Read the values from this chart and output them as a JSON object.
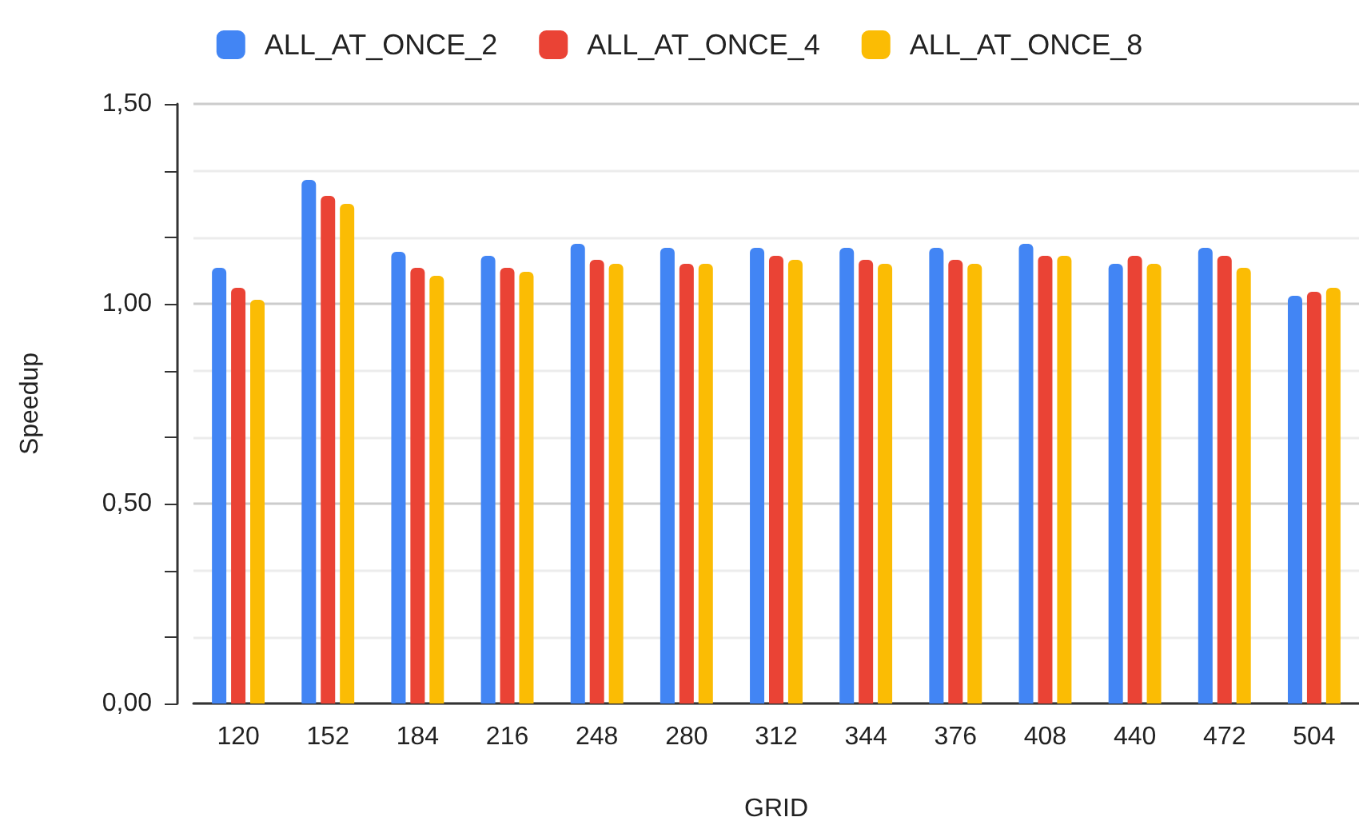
{
  "chart_data": {
    "type": "bar",
    "xlabel": "GRID",
    "ylabel": "Speedup",
    "categories": [
      "120",
      "152",
      "184",
      "216",
      "248",
      "280",
      "312",
      "344",
      "376",
      "408",
      "440",
      "472",
      "504"
    ],
    "series": [
      {
        "name": "ALL_AT_ONCE_2",
        "color": "#4285f4",
        "values": [
          1.09,
          1.31,
          1.13,
          1.12,
          1.15,
          1.14,
          1.14,
          1.14,
          1.14,
          1.15,
          1.1,
          1.14,
          1.02
        ]
      },
      {
        "name": "ALL_AT_ONCE_4",
        "color": "#ea4335",
        "values": [
          1.04,
          1.27,
          1.09,
          1.09,
          1.11,
          1.1,
          1.12,
          1.11,
          1.11,
          1.12,
          1.12,
          1.12,
          1.03
        ]
      },
      {
        "name": "ALL_AT_ONCE_8",
        "color": "#fbbc04",
        "values": [
          1.01,
          1.25,
          1.07,
          1.08,
          1.1,
          1.1,
          1.11,
          1.1,
          1.1,
          1.12,
          1.1,
          1.09,
          1.04
        ]
      }
    ],
    "ylim": [
      0,
      1.5
    ],
    "yticks": [
      {
        "value": 0,
        "label": "0,00"
      },
      {
        "value": 0.167,
        "label": null
      },
      {
        "value": 0.333,
        "label": null
      },
      {
        "value": 0.5,
        "label": "0,50"
      },
      {
        "value": 0.667,
        "label": null
      },
      {
        "value": 0.833,
        "label": null
      },
      {
        "value": 1,
        "label": "1,00"
      },
      {
        "value": 1.167,
        "label": null
      },
      {
        "value": 1.333,
        "label": null
      },
      {
        "value": 1.5,
        "label": "1,50"
      }
    ],
    "grid": "y",
    "legend": "top"
  }
}
